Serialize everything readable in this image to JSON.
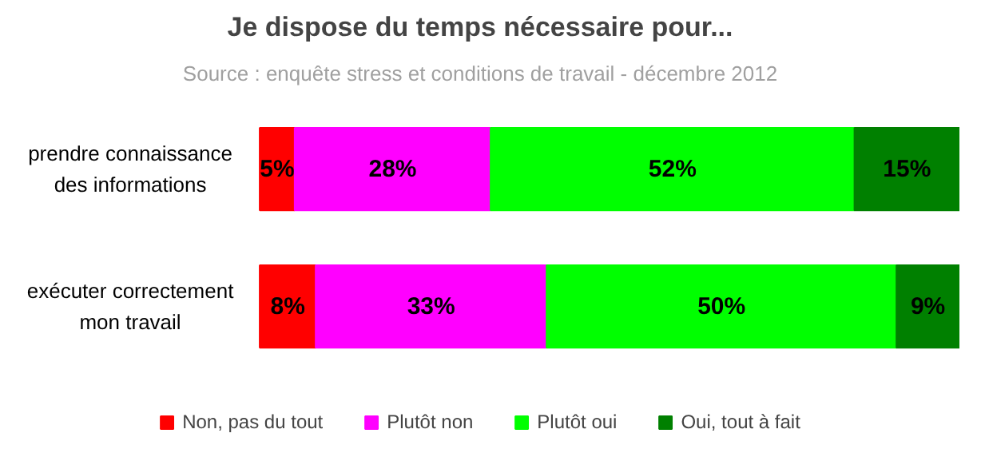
{
  "chart_data": {
    "type": "bar",
    "orientation": "horizontal",
    "stacked": true,
    "title": "Je dispose du temps nécessaire pour...",
    "subtitle": "Source : enquête stress et conditions de travail - décembre 2012",
    "categories": [
      "prendre connaissance des informations",
      "exécuter correctement mon travail"
    ],
    "series": [
      {
        "name": "Non, pas du tout",
        "color": "#ff0000",
        "values": [
          5,
          8
        ],
        "value_labels": [
          "5%",
          "8%"
        ]
      },
      {
        "name": "Plutôt non",
        "color": "#ff00ff",
        "values": [
          28,
          33
        ],
        "value_labels": [
          "28%",
          "33%"
        ]
      },
      {
        "name": "Plutôt oui",
        "color": "#00ff00",
        "values": [
          52,
          50
        ],
        "value_labels": [
          "52%",
          "50%"
        ]
      },
      {
        "name": "Oui, tout à fait",
        "color": "#008000",
        "values": [
          15,
          9
        ],
        "value_labels": [
          "15%",
          "9%"
        ]
      }
    ],
    "legend": "bottom"
  }
}
